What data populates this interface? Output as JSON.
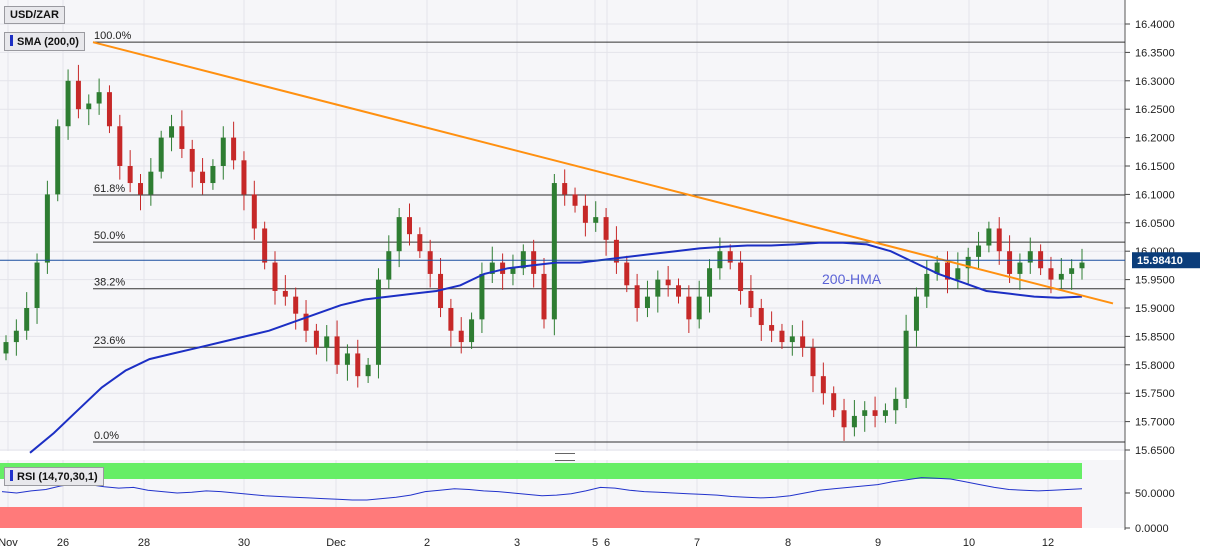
{
  "symbol": "USD/ZAR",
  "indicators": {
    "sma_label": "SMA (200,0)",
    "sma_color": "#1c2fc4",
    "rsi_label": "RSI (14,70,30,1)",
    "rsi_color": "#2233cc"
  },
  "annotation": "200-HMA",
  "current_price": "15.98410",
  "chart_data": [
    {
      "type": "candlestick",
      "title": "USD/ZAR",
      "ylim": [
        15.65,
        16.4
      ],
      "y_ticks": [
        "16.4000",
        "16.3500",
        "16.3000",
        "16.2500",
        "16.2000",
        "16.1500",
        "16.1000",
        "16.0500",
        "16.0000",
        "15.9500",
        "15.9000",
        "15.8500",
        "15.8000",
        "15.7500",
        "15.7000",
        "15.6500"
      ],
      "x_ticks": [
        "Nov",
        "26",
        "28",
        "30",
        "Dec",
        "2",
        "3",
        "5",
        "6",
        "7",
        "8",
        "9",
        "10",
        "12"
      ],
      "fibonacci": [
        {
          "label": "100.0%",
          "value": 16.368
        },
        {
          "label": "61.8%",
          "value": 16.099
        },
        {
          "label": "50.0%",
          "value": 16.016
        },
        {
          "label": "38.2%",
          "value": 15.934
        },
        {
          "label": "23.6%",
          "value": 15.831
        },
        {
          "label": "0.0%",
          "value": 15.664
        }
      ],
      "trendline": {
        "color": "#ff9010",
        "from": 16.368,
        "to": 15.908
      },
      "sma_200": [
        15.645,
        15.68,
        15.72,
        15.76,
        15.79,
        15.81,
        15.82,
        15.83,
        15.84,
        15.85,
        15.86,
        15.875,
        15.89,
        15.905,
        15.915,
        15.92,
        15.925,
        15.93,
        15.94,
        15.96,
        15.97,
        15.975,
        15.98,
        15.98,
        15.985,
        15.99,
        15.995,
        16.0,
        16.005,
        16.008,
        16.01,
        16.01,
        16.012,
        16.015,
        16.015,
        16.012,
        16.0,
        15.98,
        15.96,
        15.945,
        15.93,
        15.925,
        15.92,
        15.918,
        15.92
      ],
      "close_series": [
        15.84,
        15.86,
        15.9,
        15.98,
        16.1,
        16.22,
        16.3,
        16.25,
        16.26,
        16.28,
        16.22,
        16.15,
        16.12,
        16.1,
        16.14,
        16.2,
        16.22,
        16.18,
        16.14,
        16.12,
        16.15,
        16.2,
        16.16,
        16.1,
        16.04,
        15.98,
        15.93,
        15.92,
        15.89,
        15.86,
        15.83,
        15.85,
        15.8,
        15.82,
        15.78,
        15.8,
        15.95,
        16.0,
        16.06,
        16.03,
        16.0,
        15.96,
        15.9,
        15.86,
        15.84,
        15.88,
        15.96,
        15.98,
        15.96,
        15.97,
        16.0,
        15.96,
        15.88,
        16.12,
        16.1,
        16.08,
        16.05,
        16.06,
        16.02,
        15.98,
        15.94,
        15.9,
        15.92,
        15.95,
        15.94,
        15.92,
        15.88,
        15.92,
        15.97,
        16.0,
        15.98,
        15.93,
        15.9,
        15.87,
        15.86,
        15.84,
        15.85,
        15.83,
        15.78,
        15.75,
        15.72,
        15.69,
        15.71,
        15.72,
        15.71,
        15.72,
        15.74,
        15.86,
        15.92,
        15.96,
        15.98,
        15.95,
        15.97,
        15.99,
        16.01,
        16.04,
        16.0,
        15.96,
        15.98,
        16.0,
        15.97,
        15.95,
        15.96,
        15.97,
        15.98
      ]
    },
    {
      "type": "line",
      "title": "RSI (14,70,30,1)",
      "ylim": [
        0,
        100
      ],
      "y_ticks": [
        "50.0000",
        "0.0000"
      ],
      "overbought": 70,
      "oversold": 30,
      "values": [
        52,
        50,
        53,
        55,
        60,
        63,
        62,
        59,
        57,
        58,
        54,
        52,
        50,
        51,
        53,
        52,
        50,
        48,
        46,
        45,
        44,
        43,
        42,
        41,
        40,
        40,
        42,
        44,
        47,
        52,
        54,
        56,
        55,
        53,
        52,
        50,
        48,
        46,
        47,
        49,
        53,
        58,
        57,
        54,
        52,
        51,
        50,
        49,
        48,
        47,
        45,
        44,
        43,
        44,
        46,
        50,
        54,
        56,
        58,
        60,
        62,
        66,
        69,
        72,
        71,
        70,
        66,
        62,
        58,
        55,
        54,
        53,
        54,
        55,
        56
      ]
    }
  ]
}
